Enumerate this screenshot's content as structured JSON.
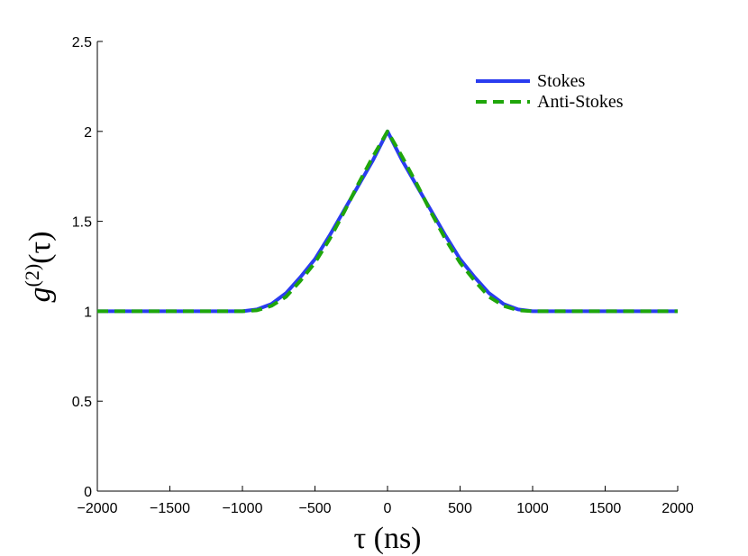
{
  "chart_data": {
    "type": "line",
    "xlabel": "τ (ns)",
    "ylabel": "g(2)(τ)",
    "ylabel_parts": {
      "base": "g",
      "sup": "(2)",
      "arg": "(τ)"
    },
    "xlim": [
      -2000,
      2000
    ],
    "ylim": [
      0,
      2.5
    ],
    "xticks": [
      -2000,
      -1500,
      -1000,
      -500,
      0,
      500,
      1000,
      1500,
      2000
    ],
    "xtick_labels": [
      "−2000",
      "−1500",
      "−1000",
      "−500",
      "0",
      "500",
      "1000",
      "1500",
      "2000"
    ],
    "yticks": [
      0,
      0.5,
      1,
      1.5,
      2,
      2.5
    ],
    "ytick_labels": [
      "0",
      "0.5",
      "1",
      "1.5",
      "2",
      "2.5"
    ],
    "grid": false,
    "legend_position": "top-right",
    "series": [
      {
        "name": "Stokes",
        "color": "#2a3cf0",
        "dash": "solid",
        "x": [
          -2000,
          -1500,
          -1100,
          -1000,
          -900,
          -800,
          -700,
          -600,
          -500,
          -400,
          -300,
          -200,
          -100,
          0,
          100,
          200,
          300,
          400,
          500,
          600,
          700,
          800,
          900,
          1000,
          1100,
          1500,
          2000
        ],
        "y": [
          1.0,
          1.0,
          1.0,
          1.0,
          1.01,
          1.04,
          1.1,
          1.19,
          1.29,
          1.42,
          1.56,
          1.7,
          1.84,
          2.0,
          1.84,
          1.7,
          1.56,
          1.42,
          1.29,
          1.19,
          1.1,
          1.04,
          1.01,
          1.0,
          1.0,
          1.0,
          1.0
        ]
      },
      {
        "name": "Anti-Stokes",
        "color": "#1fa60a",
        "dash": "dashed",
        "x": [
          -2000,
          -1500,
          -1100,
          -1000,
          -900,
          -800,
          -700,
          -600,
          -500,
          -400,
          -300,
          -200,
          -100,
          0,
          100,
          200,
          300,
          400,
          500,
          600,
          700,
          800,
          900,
          1000,
          1100,
          1500,
          2000
        ],
        "y": [
          1.0,
          1.0,
          1.0,
          1.0,
          1.005,
          1.03,
          1.08,
          1.17,
          1.27,
          1.4,
          1.55,
          1.71,
          1.86,
          2.0,
          1.86,
          1.71,
          1.55,
          1.4,
          1.27,
          1.17,
          1.08,
          1.03,
          1.005,
          1.0,
          1.0,
          1.0,
          1.0
        ]
      }
    ]
  }
}
